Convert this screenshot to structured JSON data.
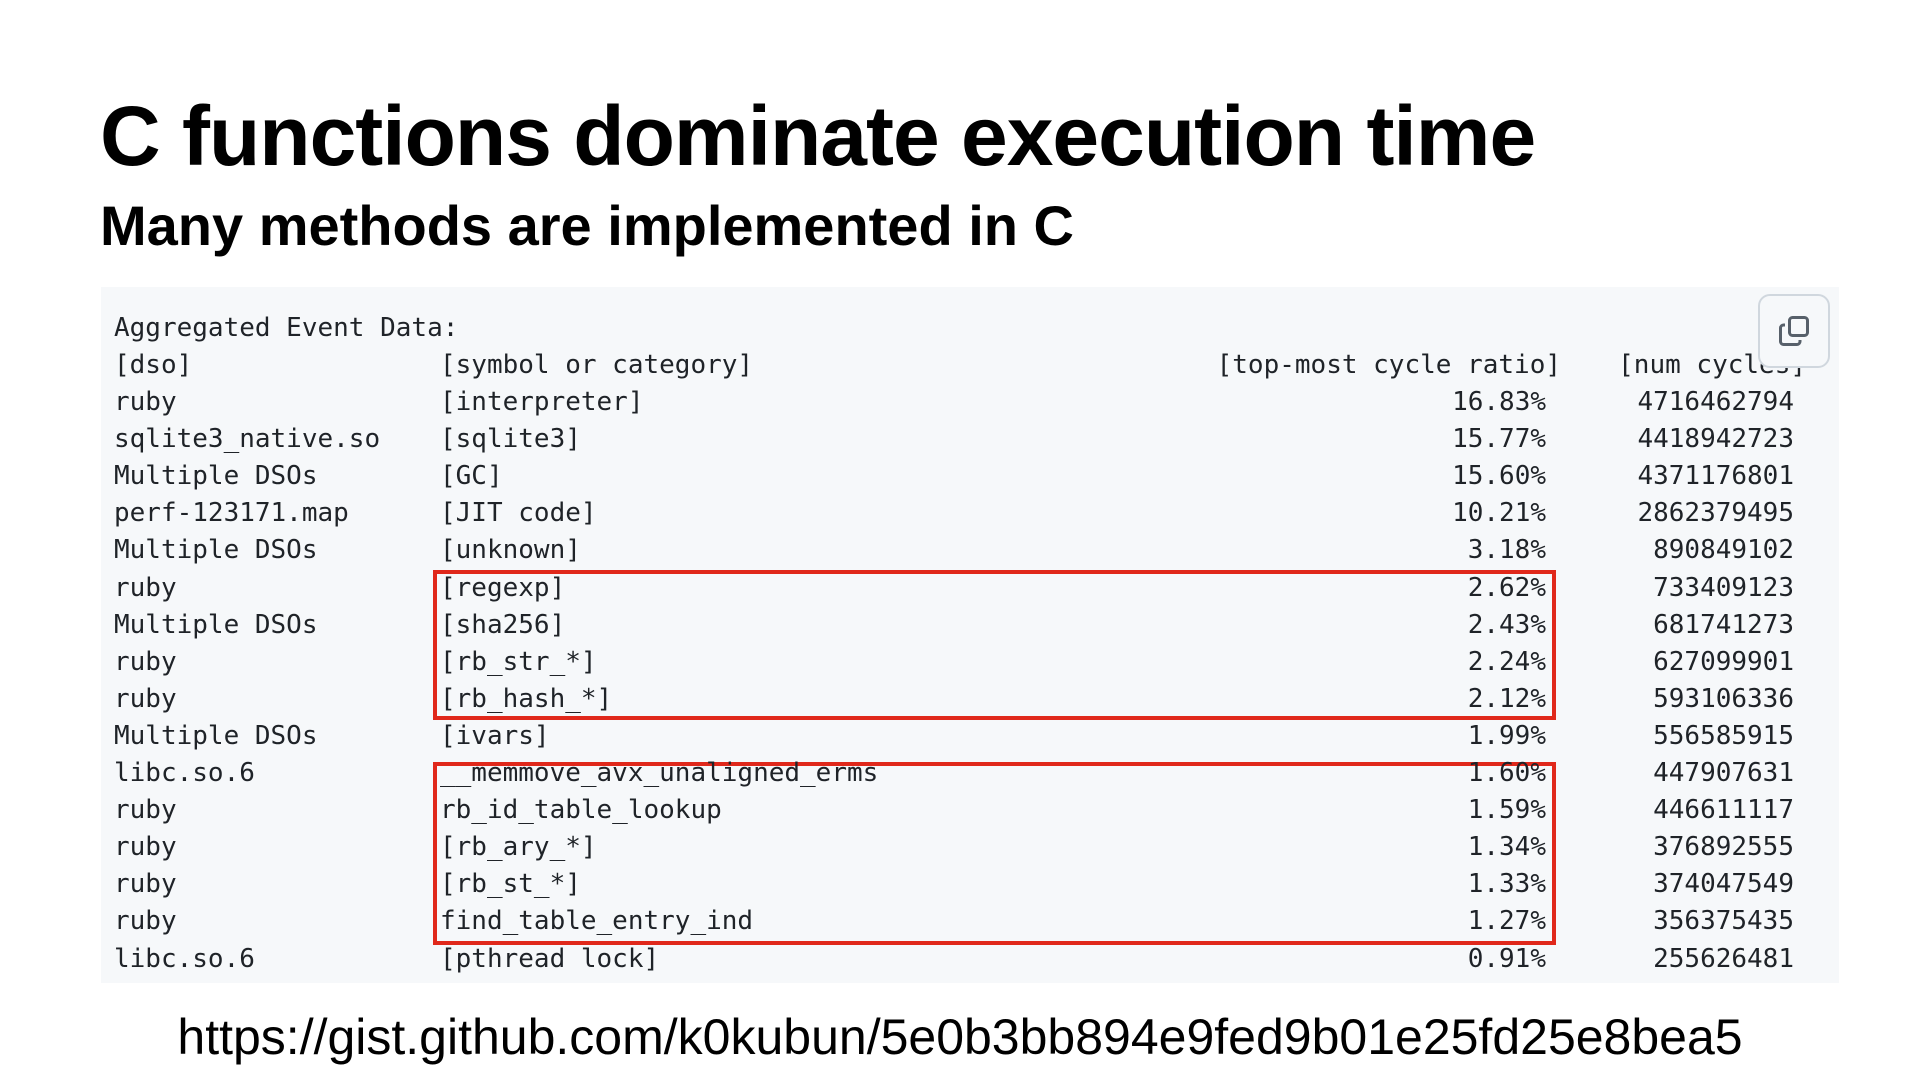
{
  "slide": {
    "title": "C functions dominate execution time",
    "subtitle": "Many methods are implemented in C",
    "url": "https://gist.github.com/k0kubun/5e0b3bb894e9fed9b01e25fd25e8bea5"
  },
  "code": {
    "heading": "Aggregated Event Data:",
    "columns": [
      "[dso]",
      "[symbol or category]",
      "[top-most cycle ratio]",
      "[num cycles]"
    ],
    "rows": [
      [
        "ruby",
        "[interpreter]",
        "16.83%",
        "4716462794"
      ],
      [
        "sqlite3_native.so",
        "[sqlite3]",
        "15.77%",
        "4418942723"
      ],
      [
        "Multiple DSOs",
        "[GC]",
        "15.60%",
        "4371176801"
      ],
      [
        "perf-123171.map",
        "[JIT code]",
        "10.21%",
        "2862379495"
      ],
      [
        "Multiple DSOs",
        "[unknown]",
        "3.18%",
        "890849102"
      ],
      [
        "ruby",
        "[regexp]",
        "2.62%",
        "733409123"
      ],
      [
        "Multiple DSOs",
        "[sha256]",
        "2.43%",
        "681741273"
      ],
      [
        "ruby",
        "[rb_str_*]",
        "2.24%",
        "627099901"
      ],
      [
        "ruby",
        "[rb_hash_*]",
        "2.12%",
        "593106336"
      ],
      [
        "Multiple DSOs",
        "[ivars]",
        "1.99%",
        "556585915"
      ],
      [
        "libc.so.6",
        "__memmove_avx_unaligned_erms",
        "1.60%",
        "447907631"
      ],
      [
        "ruby",
        "rb_id_table_lookup",
        "1.59%",
        "446611117"
      ],
      [
        "ruby",
        "[rb_ary_*]",
        "1.34%",
        "376892555"
      ],
      [
        "ruby",
        "[rb_st_*]",
        "1.33%",
        "374047549"
      ],
      [
        "ruby",
        "find_table_entry_ind",
        "1.27%",
        "356375435"
      ],
      [
        "libc.so.6",
        "[pthread lock]",
        "0.91%",
        "255626481"
      ]
    ],
    "highlight_color": "#e0281b",
    "copy_icon": "copy-icon"
  }
}
